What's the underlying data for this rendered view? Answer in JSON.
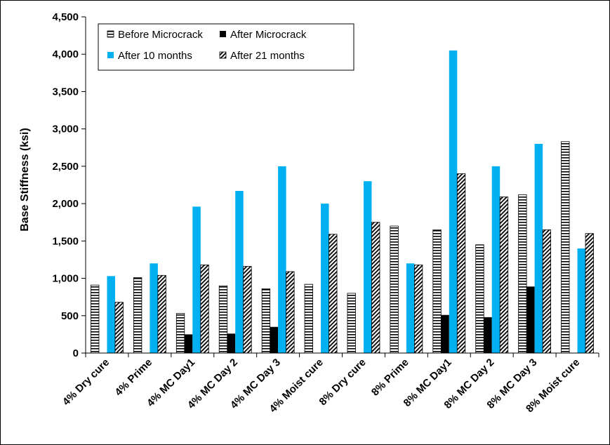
{
  "chart_data": {
    "type": "bar",
    "title": "",
    "xlabel": "",
    "ylabel": "Base Stiffness (ksi)",
    "ylim": [
      0,
      4500
    ],
    "yticks": [
      0,
      500,
      1000,
      1500,
      2000,
      2500,
      3000,
      3500,
      4000,
      4500
    ],
    "ytick_labels": [
      "0",
      "500",
      "1,000",
      "1,500",
      "2,000",
      "2,500",
      "3,000",
      "3,500",
      "4,000",
      "4,500"
    ],
    "grid": false,
    "legend_position": "top-left",
    "categories": [
      "4% Dry cure",
      "4% Prime",
      "4% MC Day1",
      "4% MC Day 2",
      "4% MC Day 3",
      "4% Moist cure",
      "8% Dry cure",
      "8% Prime",
      "8% MC Day1",
      "8% MC Day 2",
      "8% MC Day 3",
      "8% Moist cure"
    ],
    "series": [
      {
        "name": "Before Microcrack",
        "pattern": "horizontal-stripes",
        "color": "#000000",
        "values": [
          910,
          1010,
          530,
          900,
          860,
          920,
          800,
          1700,
          1650,
          1450,
          2120,
          2830
        ]
      },
      {
        "name": "After Microcrack",
        "pattern": "solid",
        "color": "#000000",
        "values": [
          null,
          null,
          250,
          260,
          350,
          null,
          null,
          null,
          510,
          480,
          890,
          null
        ]
      },
      {
        "name": "After 10 months",
        "pattern": "solid",
        "color": "#00B0F0",
        "values": [
          1030,
          1200,
          1960,
          2170,
          2500,
          2000,
          2300,
          1200,
          4050,
          2500,
          2800,
          1400
        ]
      },
      {
        "name": "After 21 months",
        "pattern": "diagonal-hatch",
        "color": "#000000",
        "values": [
          680,
          1040,
          1180,
          1160,
          1090,
          1590,
          1750,
          1180,
          2400,
          2090,
          1650,
          1600
        ]
      }
    ]
  }
}
